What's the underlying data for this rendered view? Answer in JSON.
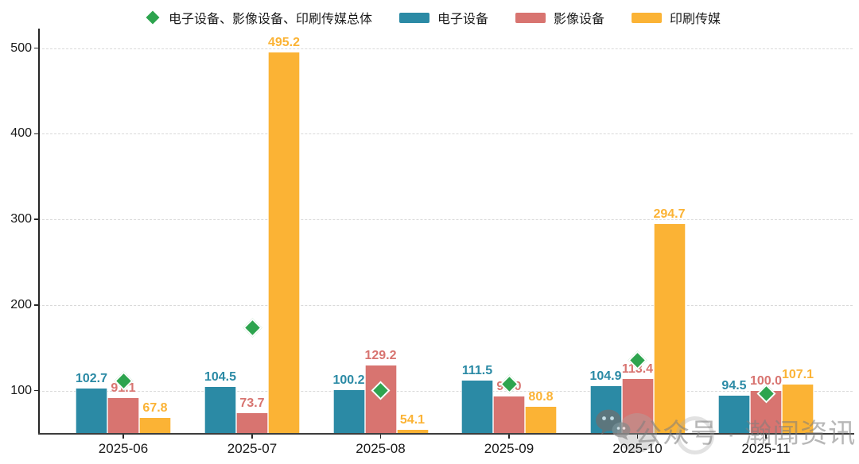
{
  "legend": {
    "items": [
      {
        "label": "电子设备、影像设备、印刷传媒总体",
        "marker": "diamond",
        "color": "#2da44e"
      },
      {
        "label": "电子设备",
        "marker": "rect",
        "color": "#2b8aa5"
      },
      {
        "label": "影像设备",
        "marker": "rect",
        "color": "#d87470"
      },
      {
        "label": "印刷传媒",
        "marker": "rect",
        "color": "#fbb335"
      }
    ]
  },
  "chart_data": {
    "type": "bar",
    "categories": [
      "2025-06",
      "2025-07",
      "2025-08",
      "2025-09",
      "2025-10",
      "2025-11"
    ],
    "series": [
      {
        "name": "电子设备",
        "key": "electronic-equipment",
        "color": "#2b8aa5",
        "values": [
          102.7,
          104.5,
          100.2,
          111.5,
          104.9,
          94.5
        ]
      },
      {
        "name": "影像设备",
        "key": "imaging-equipment",
        "color": "#d87470",
        "values": [
          91.1,
          73.7,
          129.2,
          93.0,
          113.4,
          100.0
        ]
      },
      {
        "name": "印刷传媒",
        "key": "print-media",
        "color": "#fbb335",
        "values": [
          67.8,
          495.2,
          54.1,
          80.8,
          294.7,
          107.1
        ]
      }
    ],
    "scatter_series": {
      "name": "电子设备、影像设备、印刷传媒总体",
      "key": "overall-index",
      "marker": "diamond",
      "color": "#2da44e",
      "labels_shown": false,
      "estimated": true,
      "values": [
        111,
        173,
        100,
        108,
        135,
        96
      ]
    },
    "title": "",
    "xlabel": "",
    "ylabel": "",
    "y_ticks": [
      100,
      200,
      300,
      400,
      500
    ],
    "ylim": [
      50,
      523
    ],
    "grid": "horizontal-dashed",
    "value_labels": "one-decimal",
    "legend_position": "top"
  },
  "watermark": {
    "icon": "wechat-icon",
    "text": "公众号 · 瀚闻资讯"
  }
}
